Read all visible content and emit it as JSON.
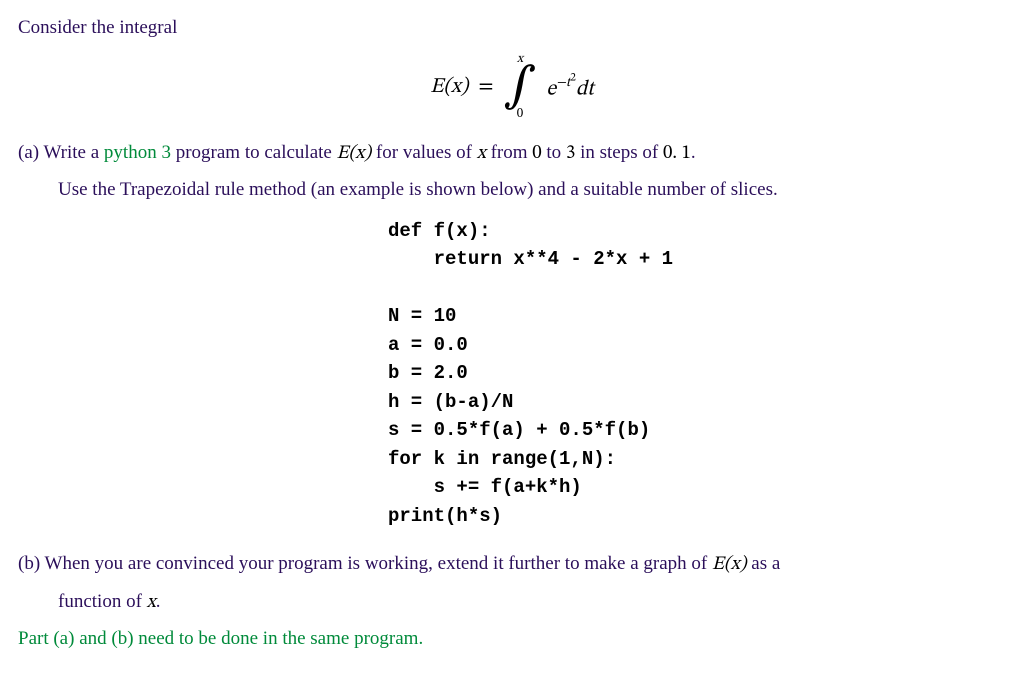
{
  "colors": {
    "purple": "#2b0f5a",
    "green": "#008a3a",
    "black": "#000000"
  },
  "text": {
    "consider": "Consider the integral",
    "eq_lhs": "E(x)",
    "eq_eq": " = ",
    "eq_upper": "x",
    "eq_lower": "0",
    "eq_e": "e",
    "eq_exp_neg": "−t",
    "eq_exp_sq": "2",
    "eq_dt": "dt",
    "a_prefix": "(a) Write a ",
    "python3": "python 3",
    "a_mid": " program to calculate ",
    "a_Ex": "E(x)",
    "a_mid2": " for values of ",
    "a_x": "x",
    "a_mid3": " from ",
    "a_zero": "0",
    "a_to": " to ",
    "a_three": "3",
    "a_mid4": " in steps of ",
    "a_step": "0. 1",
    "a_end": ".",
    "a_line2": "Use the Trapezoidal rule method (an example is shown below) and a suitable number of slices.",
    "code": "def f(x):\n    return x**4 - 2*x + 1\n\nN = 10\na = 0.0\nb = 2.0\nh = (b-a)/N\ns = 0.5*f(a) + 0.5*f(b)\nfor k in range(1,N):\n    s += f(a+k*h)\nprint(h*s)",
    "b_prefix": "(b) When you are convinced your program is working, extend it further to make a graph of ",
    "b_Ex": "E(x)",
    "b_mid": " as a",
    "b_line2a": "function of ",
    "b_line2x": "x",
    "b_line2b": ".",
    "note": "Part (a) and (b) need to be done in the same program."
  }
}
